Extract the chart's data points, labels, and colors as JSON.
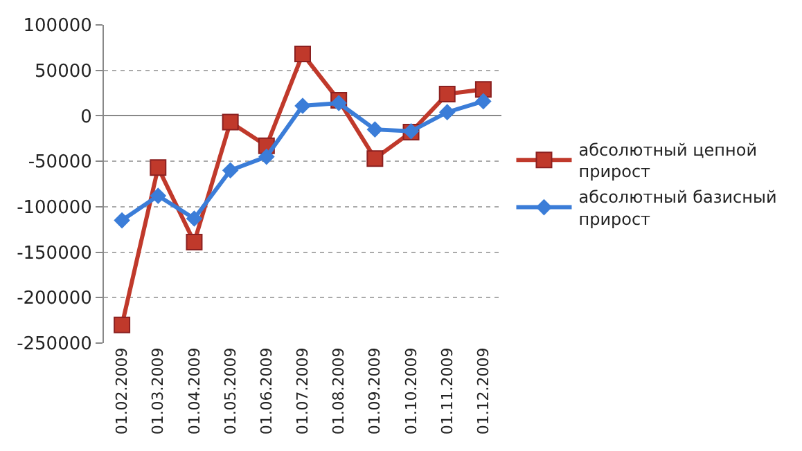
{
  "chart_data": {
    "type": "line",
    "categories": [
      "01.02.2009",
      "01.03.2009",
      "01.04.2009",
      "01.05.2009",
      "01.06.2009",
      "01.07.2009",
      "01.08.2009",
      "01.09.2009",
      "01.10.2009",
      "01.11.2009",
      "01.12.2009"
    ],
    "series": [
      {
        "name": "абсолютный цепной прирост",
        "color": "#c0392b",
        "marker": "square",
        "values": [
          -230000,
          -57000,
          -139000,
          -7000,
          -33000,
          68000,
          17000,
          -47000,
          -18000,
          24000,
          29000
        ]
      },
      {
        "name": "абсолютный базисный прирост",
        "color": "#3b7dd8",
        "marker": "diamond",
        "values": [
          -115000,
          -88000,
          -113000,
          -60000,
          -45000,
          11000,
          14000,
          -15000,
          -17000,
          4000,
          16000
        ]
      }
    ],
    "ylim": [
      -250000,
      100000
    ],
    "yticks": [
      -250000,
      -200000,
      -150000,
      -100000,
      -50000,
      0,
      50000,
      100000
    ],
    "grid": "y",
    "legend": "right",
    "line_style": "solid"
  }
}
